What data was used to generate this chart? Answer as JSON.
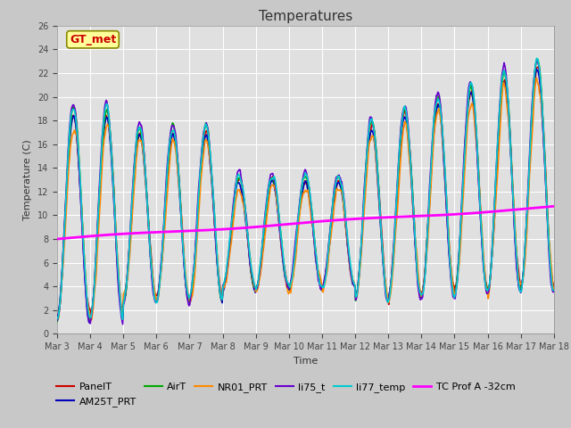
{
  "title": "Temperatures",
  "xlabel": "Time",
  "ylabel": "Temperature (C)",
  "ylim": [
    0,
    26
  ],
  "fig_facecolor": "#c8c8c8",
  "ax_facecolor": "#e0e0e0",
  "annotation_text": "GT_met",
  "annotation_color": "#cc0000",
  "annotation_bg": "#ffff99",
  "annotation_edgecolor": "#888800",
  "series": {
    "PanelT": {
      "color": "#cc0000",
      "lw": 1.2
    },
    "AM25T_PRT": {
      "color": "#0000bb",
      "lw": 1.2
    },
    "AirT": {
      "color": "#00aa00",
      "lw": 1.2
    },
    "NR01_PRT": {
      "color": "#ff8800",
      "lw": 1.2
    },
    "li75_t": {
      "color": "#6600cc",
      "lw": 1.2
    },
    "li77_temp": {
      "color": "#00cccc",
      "lw": 1.2
    },
    "TC Prof A -32cm": {
      "color": "#ff00ff",
      "lw": 2.0
    }
  },
  "x_tick_labels": [
    "Mar 3",
    "Mar 4",
    "Mar 5",
    "Mar 6",
    "Mar 7",
    "Mar 8",
    "Mar 9",
    "Mar 10",
    "Mar 11",
    "Mar 12",
    "Mar 13",
    "Mar 14",
    "Mar 15",
    "Mar 16",
    "Mar 17",
    "Mar 18"
  ],
  "grid_color": "#ffffff",
  "tick_fontsize": 7,
  "title_fontsize": 11,
  "label_fontsize": 8,
  "legend_fontsize": 8
}
